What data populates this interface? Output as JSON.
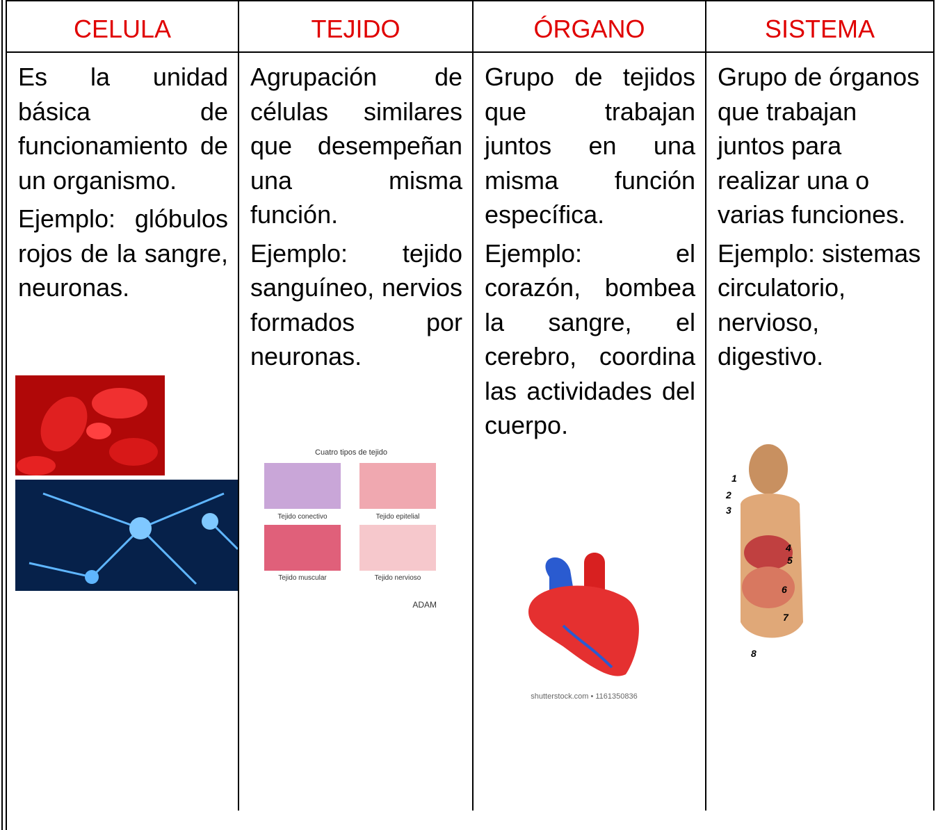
{
  "table": {
    "headers": [
      "CELULA",
      "TEJIDO",
      "ÓRGANO",
      "SISTEMA"
    ],
    "cells": [
      {
        "paragraphs": [
          "Es la unidad básica de funcionamiento de un organismo.",
          "Ejemplo: glóbulos rojos de la sangre, neuronas."
        ]
      },
      {
        "paragraphs": [
          "Agrupación de células similares que desempeñan una misma función.",
          "Ejemplo: tejido sanguíneo, nervios formados por neuronas."
        ]
      },
      {
        "paragraphs": [
          "Grupo de tejidos que trabajan juntos en una misma función específica.",
          "Ejemplo: el corazón, bombea la sangre, el cerebro, coordina las actividades del cuerpo."
        ]
      },
      {
        "paragraphs": [
          "Grupo de órganos que trabajan juntos para realizar una o varias funciones.",
          "Ejemplo: sistemas circulatorio, nervioso, digestivo."
        ]
      }
    ]
  },
  "tissue_figure": {
    "title": "Cuatro tipos de tejido",
    "labels": [
      "Tejido conectivo",
      "Tejido epitelial",
      "Tejido muscular",
      "Tejido nervioso"
    ],
    "credit": "ADAM"
  },
  "heart_figure": {
    "credit": "shutterstock.com • 1161350836"
  },
  "digestive_figure": {
    "labels": [
      "1",
      "2",
      "3",
      "4",
      "5",
      "6",
      "7",
      "8"
    ]
  }
}
